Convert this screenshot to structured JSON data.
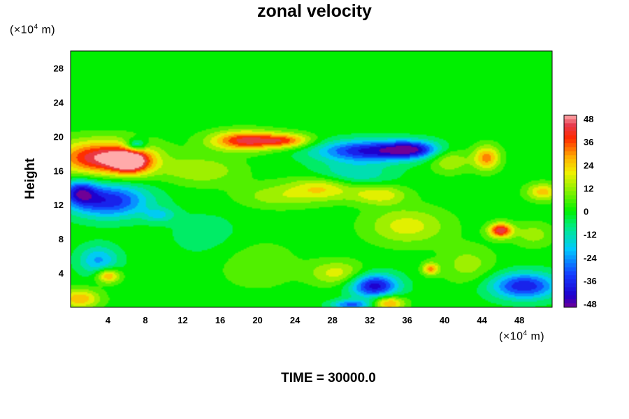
{
  "chart_data": {
    "type": "heatmap",
    "title": "zonal velocity",
    "ylabel": "Height",
    "y_unit": {
      "prefix": "(×10",
      "exp": "4",
      "suffix": " m)"
    },
    "x_unit": {
      "prefix": "(×10",
      "exp": "4",
      "suffix": " m)"
    },
    "xlim": [
      0,
      51.5
    ],
    "ylim": [
      0,
      30
    ],
    "x_ticks": [
      4,
      8,
      12,
      16,
      20,
      24,
      28,
      32,
      36,
      40,
      44,
      48
    ],
    "y_ticks": [
      4,
      8,
      12,
      16,
      20,
      24,
      28
    ],
    "colorbar": {
      "range": [
        -48,
        48
      ],
      "ticks": [
        48,
        36,
        24,
        12,
        0,
        -12,
        -24,
        -36,
        -48
      ]
    },
    "features": [
      {
        "x": 3.5,
        "y": 17.5,
        "v": 46,
        "sx": 3.5,
        "sy": 1.4
      },
      {
        "x": 6.5,
        "y": 17.0,
        "v": 36,
        "sx": 1.5,
        "sy": 1.0
      },
      {
        "x": 18.5,
        "y": 19.5,
        "v": 40,
        "sx": 2.5,
        "sy": 0.8
      },
      {
        "x": 23.0,
        "y": 19.5,
        "v": 30,
        "sx": 2.0,
        "sy": 0.6
      },
      {
        "x": 32.0,
        "y": 18.3,
        "v": -40,
        "sx": 4.0,
        "sy": 0.9
      },
      {
        "x": 36.5,
        "y": 18.5,
        "v": -30,
        "sx": 2.0,
        "sy": 0.7
      },
      {
        "x": 7.0,
        "y": 19.0,
        "v": -28,
        "sx": 0.8,
        "sy": 0.5
      },
      {
        "x": 4.0,
        "y": 12.5,
        "v": -38,
        "sx": 3.0,
        "sy": 1.4
      },
      {
        "x": 1.0,
        "y": 13.5,
        "v": -30,
        "sx": 1.2,
        "sy": 1.0
      },
      {
        "x": 44.5,
        "y": 17.5,
        "v": 30,
        "sx": 1.0,
        "sy": 1.0
      },
      {
        "x": 46.0,
        "y": 9.0,
        "v": 44,
        "sx": 0.9,
        "sy": 0.6
      },
      {
        "x": 48.5,
        "y": 2.5,
        "v": -38,
        "sx": 2.5,
        "sy": 1.1
      },
      {
        "x": 32.5,
        "y": 2.5,
        "v": -42,
        "sx": 1.8,
        "sy": 1.0
      },
      {
        "x": 34.0,
        "y": 0.5,
        "v": 30,
        "sx": 1.2,
        "sy": 0.6
      },
      {
        "x": 4.0,
        "y": 3.7,
        "v": 30,
        "sx": 0.9,
        "sy": 0.6
      },
      {
        "x": 38.5,
        "y": 4.5,
        "v": 28,
        "sx": 0.6,
        "sy": 0.5
      },
      {
        "x": 50.5,
        "y": 13.5,
        "v": 24,
        "sx": 1.2,
        "sy": 0.7
      },
      {
        "x": 27.0,
        "y": 14.0,
        "v": 22,
        "sx": 2.5,
        "sy": 1.0
      },
      {
        "x": 33.0,
        "y": 13.2,
        "v": 20,
        "sx": 2.0,
        "sy": 0.8
      },
      {
        "x": 36.0,
        "y": 9.5,
        "v": 18,
        "sx": 3.0,
        "sy": 1.5
      },
      {
        "x": 30.0,
        "y": 15.5,
        "v": -16,
        "sx": 3.0,
        "sy": 1.0
      },
      {
        "x": 14.0,
        "y": 16.0,
        "v": 14,
        "sx": 3.0,
        "sy": 1.2
      },
      {
        "x": 22.0,
        "y": 13.0,
        "v": 12,
        "sx": 3.0,
        "sy": 1.0
      },
      {
        "x": 3.0,
        "y": 5.5,
        "v": -22,
        "sx": 1.5,
        "sy": 1.2
      },
      {
        "x": 1.0,
        "y": 1.0,
        "v": 26,
        "sx": 1.5,
        "sy": 0.8
      },
      {
        "x": 28.5,
        "y": 4.0,
        "v": 18,
        "sx": 2.0,
        "sy": 1.0
      },
      {
        "x": 42.5,
        "y": 5.0,
        "v": 12,
        "sx": 2.0,
        "sy": 1.5
      },
      {
        "x": 49.5,
        "y": 8.5,
        "v": 12,
        "sx": 1.5,
        "sy": 1.0
      },
      {
        "x": 30.0,
        "y": 0.3,
        "v": -28,
        "sx": 1.5,
        "sy": 0.4
      },
      {
        "x": 20.0,
        "y": 5.0,
        "v": 8,
        "sx": 3.0,
        "sy": 2.0
      },
      {
        "x": 9.5,
        "y": 10.8,
        "v": -14,
        "sx": 1.2,
        "sy": 0.6
      },
      {
        "x": 40.5,
        "y": 17.2,
        "v": 16,
        "sx": 1.5,
        "sy": 1.0
      },
      {
        "x": 14.5,
        "y": 8.5,
        "v": -6,
        "sx": 3.0,
        "sy": 2.0
      }
    ]
  },
  "footer": {
    "time_label": "TIME = 30000.0"
  }
}
